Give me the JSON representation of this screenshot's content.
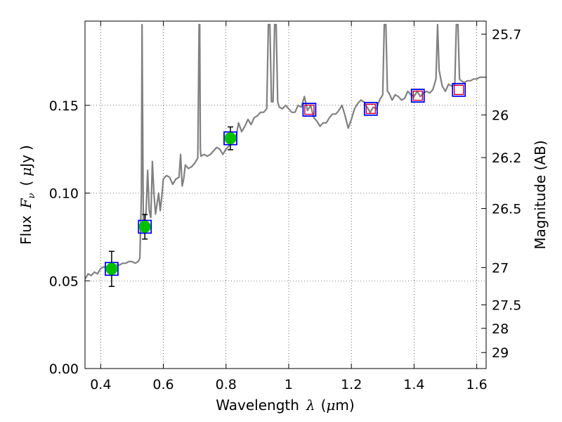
{
  "chart_data": {
    "type": "line",
    "title": "",
    "xlabel": "Wavelength",
    "xlabel_symbol": "λ",
    "xlabel_unit_open": "(",
    "xlabel_unit_mu": "μ",
    "xlabel_unit_rest": "m)",
    "ylabel": "Flux",
    "ylabel_symbol": "F",
    "ylabel_symbol_sub": "ν",
    "ylabel_unit_open": "(",
    "ylabel_unit_mu": "μ",
    "ylabel_unit_rest": "Jy",
    "ylabel_unit_close": ")",
    "y2label": "Magnitude (AB)",
    "xlim": [
      0.35,
      1.63
    ],
    "ylim": [
      0.0,
      0.198
    ],
    "grid": true,
    "x_ticks": [
      {
        "value": 0.4,
        "label": "0.4"
      },
      {
        "value": 0.6,
        "label": "0.6"
      },
      {
        "value": 0.8,
        "label": "0.8"
      },
      {
        "value": 1.0,
        "label": "1"
      },
      {
        "value": 1.2,
        "label": "1.2"
      },
      {
        "value": 1.4,
        "label": "1.4"
      },
      {
        "value": 1.6,
        "label": "1.6"
      }
    ],
    "y_ticks": [
      {
        "value": 0.0,
        "label": "0.00"
      },
      {
        "value": 0.05,
        "label": "0.05"
      },
      {
        "value": 0.1,
        "label": "0.10"
      },
      {
        "value": 0.15,
        "label": "0.15"
      }
    ],
    "y2_ticks": [
      {
        "mag": 25.7,
        "label": "25.7"
      },
      {
        "mag": 26.0,
        "label": "26"
      },
      {
        "mag": 26.2,
        "label": "26.2"
      },
      {
        "mag": 26.5,
        "label": "26.5"
      },
      {
        "mag": 27.0,
        "label": "27"
      },
      {
        "mag": 27.5,
        "label": "27.5"
      },
      {
        "mag": 28.0,
        "label": "28"
      },
      {
        "mag": 29.0,
        "label": "29"
      }
    ],
    "colors": {
      "spectrum": "#808080",
      "model_box": "#0000ff",
      "obs_point": "#00c000",
      "upper_box": "#cc0033",
      "errorbar": "#000000",
      "grid": "#000000"
    },
    "spectrum": {
      "name": "",
      "x": [
        0.35,
        0.36,
        0.37,
        0.38,
        0.39,
        0.4,
        0.41,
        0.42,
        0.43,
        0.44,
        0.45,
        0.46,
        0.47,
        0.48,
        0.49,
        0.5,
        0.51,
        0.52,
        0.525,
        0.53,
        0.532,
        0.534,
        0.536,
        0.54,
        0.545,
        0.55,
        0.555,
        0.56,
        0.565,
        0.57,
        0.575,
        0.58,
        0.585,
        0.59,
        0.595,
        0.6,
        0.61,
        0.62,
        0.63,
        0.64,
        0.65,
        0.655,
        0.66,
        0.665,
        0.67,
        0.68,
        0.69,
        0.7,
        0.71,
        0.714,
        0.716,
        0.718,
        0.72,
        0.73,
        0.74,
        0.75,
        0.76,
        0.77,
        0.78,
        0.79,
        0.8,
        0.81,
        0.82,
        0.83,
        0.84,
        0.85,
        0.86,
        0.87,
        0.88,
        0.89,
        0.9,
        0.91,
        0.92,
        0.93,
        0.935,
        0.94,
        0.945,
        0.95,
        0.955,
        0.96,
        0.965,
        0.97,
        0.98,
        0.99,
        1.0,
        1.01,
        1.02,
        1.03,
        1.04,
        1.05,
        1.06,
        1.07,
        1.08,
        1.09,
        1.1,
        1.11,
        1.12,
        1.13,
        1.14,
        1.15,
        1.16,
        1.17,
        1.18,
        1.19,
        1.2,
        1.21,
        1.22,
        1.23,
        1.24,
        1.25,
        1.26,
        1.27,
        1.28,
        1.29,
        1.3,
        1.305,
        1.31,
        1.315,
        1.32,
        1.33,
        1.34,
        1.35,
        1.36,
        1.37,
        1.38,
        1.39,
        1.4,
        1.41,
        1.42,
        1.43,
        1.44,
        1.45,
        1.46,
        1.47,
        1.475,
        1.48,
        1.49,
        1.5,
        1.51,
        1.52,
        1.53,
        1.535,
        1.54,
        1.545,
        1.55,
        1.56,
        1.57,
        1.58,
        1.59,
        1.6,
        1.61,
        1.62,
        1.63
      ],
      "y": [
        0.051,
        0.054,
        0.053,
        0.055,
        0.054,
        0.057,
        0.058,
        0.057,
        0.058,
        0.058,
        0.059,
        0.059,
        0.06,
        0.06,
        0.061,
        0.061,
        0.06,
        0.061,
        0.063,
        0.1,
        0.196,
        0.14,
        0.085,
        0.083,
        0.09,
        0.113,
        0.09,
        0.086,
        0.118,
        0.1,
        0.088,
        0.094,
        0.1,
        0.09,
        0.098,
        0.108,
        0.11,
        0.109,
        0.105,
        0.108,
        0.109,
        0.122,
        0.104,
        0.108,
        0.116,
        0.114,
        0.115,
        0.117,
        0.12,
        0.196,
        0.196,
        0.125,
        0.121,
        0.122,
        0.121,
        0.122,
        0.124,
        0.126,
        0.125,
        0.122,
        0.125,
        0.127,
        0.131,
        0.13,
        0.14,
        0.135,
        0.138,
        0.142,
        0.139,
        0.143,
        0.144,
        0.146,
        0.146,
        0.148,
        0.196,
        0.196,
        0.152,
        0.152,
        0.196,
        0.196,
        0.152,
        0.149,
        0.148,
        0.15,
        0.148,
        0.146,
        0.146,
        0.15,
        0.149,
        0.155,
        0.147,
        0.15,
        0.143,
        0.141,
        0.138,
        0.14,
        0.14,
        0.143,
        0.145,
        0.145,
        0.147,
        0.15,
        0.144,
        0.137,
        0.142,
        0.148,
        0.151,
        0.153,
        0.152,
        0.149,
        0.146,
        0.149,
        0.148,
        0.153,
        0.156,
        0.196,
        0.196,
        0.158,
        0.157,
        0.153,
        0.156,
        0.155,
        0.153,
        0.154,
        0.158,
        0.156,
        0.155,
        0.158,
        0.155,
        0.157,
        0.158,
        0.157,
        0.159,
        0.165,
        0.196,
        0.17,
        0.161,
        0.158,
        0.162,
        0.161,
        0.162,
        0.196,
        0.196,
        0.165,
        0.164,
        0.163,
        0.164,
        0.164,
        0.165,
        0.165,
        0.166,
        0.166,
        0.166
      ]
    },
    "photometry": [
      {
        "x": 0.435,
        "flux": 0.0568,
        "err": 0.01,
        "observed": true
      },
      {
        "x": 0.541,
        "flux": 0.0808,
        "err": 0.007,
        "observed": true
      },
      {
        "x": 0.814,
        "flux": 0.1312,
        "err": 0.0065,
        "observed": true
      },
      {
        "x": 1.066,
        "flux": 0.1475,
        "err": 0,
        "observed": false
      },
      {
        "x": 1.262,
        "flux": 0.148,
        "err": 0,
        "observed": false
      },
      {
        "x": 1.412,
        "flux": 0.1555,
        "err": 0,
        "observed": false
      },
      {
        "x": 1.543,
        "flux": 0.1588,
        "err": 0,
        "observed": false
      }
    ]
  }
}
